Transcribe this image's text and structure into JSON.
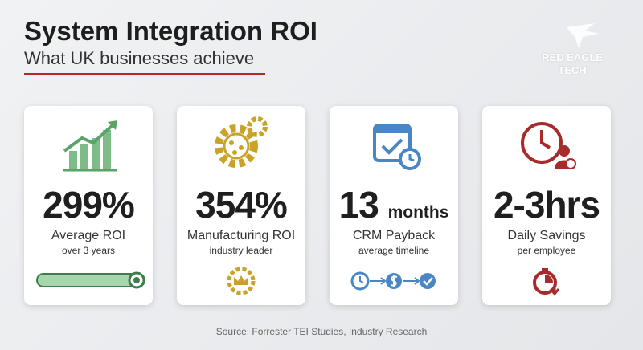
{
  "header": {
    "title": "System Integration ROI",
    "subtitle": "What UK businesses achieve"
  },
  "brand": {
    "line1": "RED EAGLE",
    "line2": "TECH"
  },
  "cards": [
    {
      "value": "299%",
      "label": "Average ROI",
      "sub": "over 3 years"
    },
    {
      "value": "354%",
      "label": "Manufacturing ROI",
      "sub": "industry leader"
    },
    {
      "value": "13",
      "unit": "months",
      "label": "CRM Payback",
      "sub": "average timeline"
    },
    {
      "value": "2-3hrs",
      "label": "Daily Savings",
      "sub": "per employee"
    }
  ],
  "source": "Source: Forrester TEI Studies, Industry Research"
}
